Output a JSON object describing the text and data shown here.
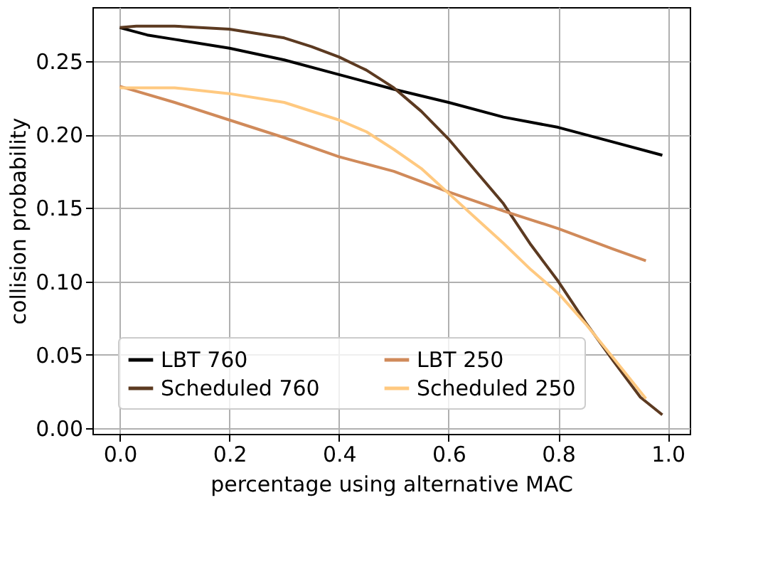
{
  "chart_data": {
    "type": "line",
    "xlabel": "percentage using alternative MAC",
    "ylabel": "collision probability",
    "xlim": [
      -0.05,
      1.04
    ],
    "ylim": [
      -0.004,
      0.287
    ],
    "xticks": [
      {
        "value": 0,
        "label": "0.0"
      },
      {
        "value": 0.2,
        "label": "0.2"
      },
      {
        "value": 0.4,
        "label": "0.4"
      },
      {
        "value": 0.6,
        "label": "0.6"
      },
      {
        "value": 0.8,
        "label": "0.8"
      },
      {
        "value": 1,
        "label": "1.0"
      }
    ],
    "yticks": [
      {
        "value": 0,
        "label": "0.00"
      },
      {
        "value": 0.05,
        "label": "0.05"
      },
      {
        "value": 0.1,
        "label": "0.10"
      },
      {
        "value": 0.15,
        "label": "0.15"
      },
      {
        "value": 0.2,
        "label": "0.20"
      },
      {
        "value": 0.25,
        "label": "0.25"
      }
    ],
    "grid": true,
    "legend": "bottom left",
    "marker": "none",
    "line_style": "solid",
    "series": [
      {
        "name": "LBT 760",
        "color": "#000000",
        "x": [
          0,
          0.05,
          0.1,
          0.2,
          0.3,
          0.4,
          0.5,
          0.6,
          0.7,
          0.8,
          0.9,
          0.99
        ],
        "values": [
          0.273,
          0.268,
          0.265,
          0.259,
          0.251,
          0.241,
          0.231,
          0.222,
          0.212,
          0.205,
          0.195,
          0.186
        ]
      },
      {
        "name": "Scheduled 760",
        "color": "#5c3a21",
        "x": [
          0,
          0.03,
          0.1,
          0.2,
          0.3,
          0.35,
          0.4,
          0.45,
          0.5,
          0.55,
          0.6,
          0.65,
          0.7,
          0.75,
          0.8,
          0.85,
          0.9,
          0.95,
          0.99
        ],
        "values": [
          0.273,
          0.274,
          0.274,
          0.272,
          0.266,
          0.26,
          0.253,
          0.244,
          0.232,
          0.216,
          0.197,
          0.175,
          0.153,
          0.125,
          0.1,
          0.072,
          0.046,
          0.021,
          0.009
        ]
      },
      {
        "name": "LBT 250",
        "color": "#d08a5a",
        "x": [
          0,
          0.1,
          0.2,
          0.3,
          0.4,
          0.5,
          0.6,
          0.7,
          0.8,
          0.9,
          0.96
        ],
        "values": [
          0.233,
          0.222,
          0.21,
          0.198,
          0.185,
          0.175,
          0.161,
          0.148,
          0.136,
          0.122,
          0.114
        ]
      },
      {
        "name": "Scheduled 250",
        "color": "#ffc980",
        "x": [
          0,
          0.1,
          0.2,
          0.3,
          0.4,
          0.45,
          0.5,
          0.55,
          0.6,
          0.65,
          0.7,
          0.75,
          0.8,
          0.85,
          0.9,
          0.96
        ],
        "values": [
          0.232,
          0.232,
          0.228,
          0.222,
          0.21,
          0.202,
          0.19,
          0.177,
          0.16,
          0.143,
          0.126,
          0.108,
          0.092,
          0.071,
          0.048,
          0.02
        ]
      }
    ]
  }
}
